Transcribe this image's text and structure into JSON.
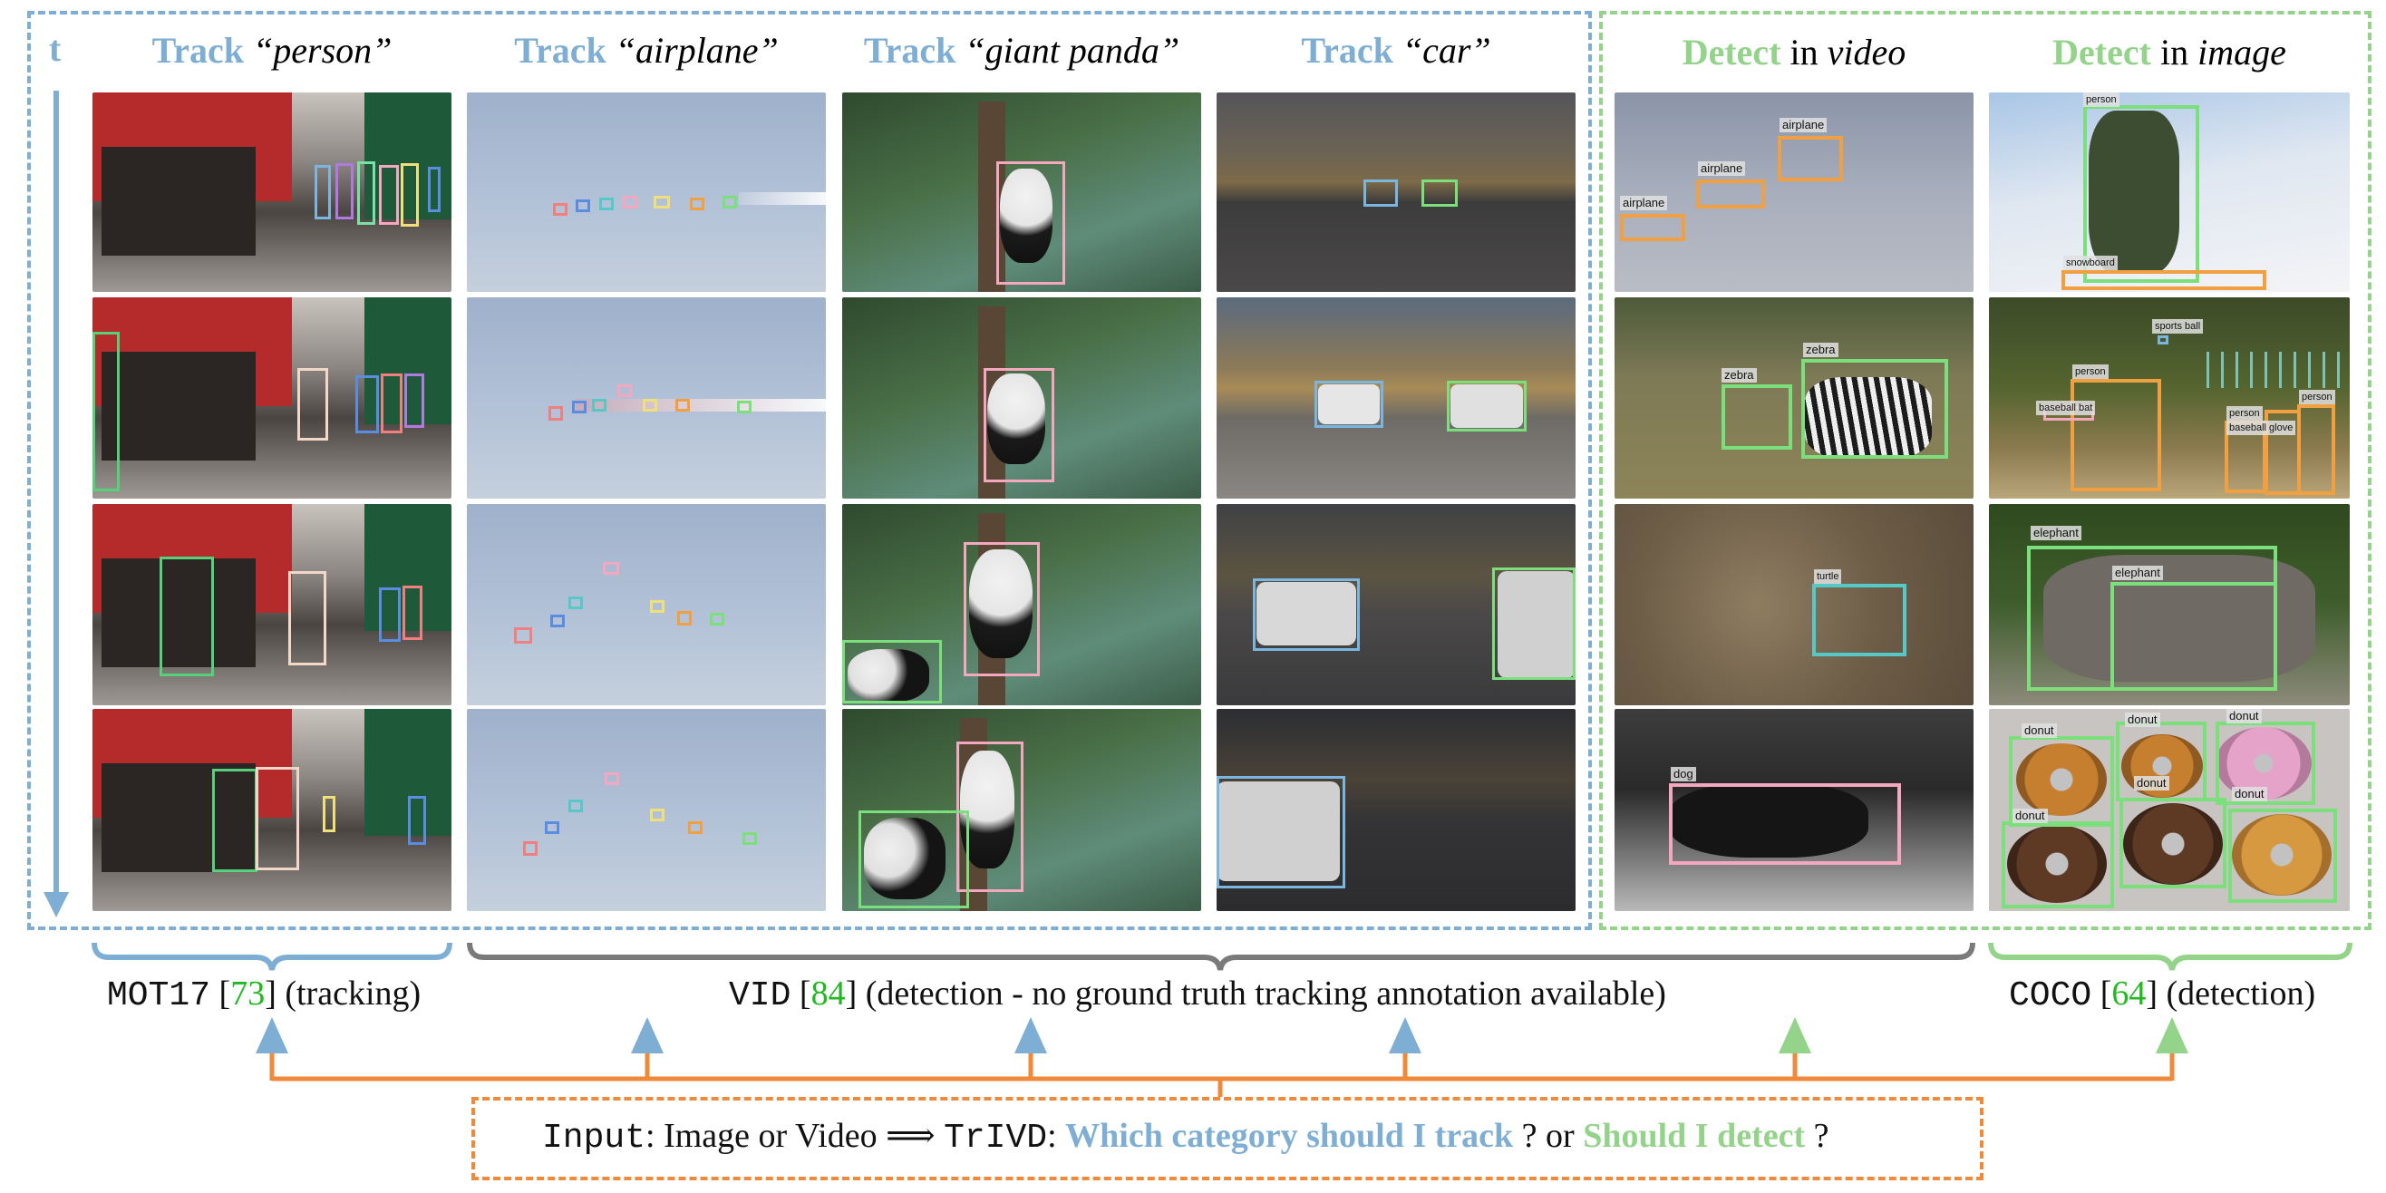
{
  "figure": {
    "time_label": "t",
    "track_columns": [
      {
        "word": "Track",
        "category": "“person”"
      },
      {
        "word": "Track",
        "category": "“airplane”"
      },
      {
        "word": "Track",
        "category": "“giant panda”"
      },
      {
        "word": "Track",
        "category": "“car”"
      }
    ],
    "detect_columns": [
      {
        "word": "Detect",
        "joiner": "in",
        "source": "video"
      },
      {
        "word": "Detect",
        "joiner": "in",
        "source": "image"
      }
    ],
    "detection_labels": {
      "airplane": "airplane",
      "person": "person",
      "snowboard": "snowboard",
      "zebra": "zebra",
      "sports_ball": "sports ball",
      "baseball_bat": "baseball bat",
      "baseball_glove": "baseball glove",
      "turtle": "turtle",
      "elephant": "elephant",
      "dog": "dog",
      "donut": "donut"
    },
    "datasets": [
      {
        "name": "MOT17",
        "open": " [",
        "cite": "73",
        "close": "] (tracking)"
      },
      {
        "name": "VID",
        "open": " [",
        "cite": "84",
        "close": "] (detection - no ground truth tracking annotation available)"
      },
      {
        "name": "COCO",
        "open": " [",
        "cite": "64",
        "close": "] (detection)"
      }
    ],
    "input_box": {
      "input_word": "Input",
      "input_rest": ": Image or Video ",
      "arrow": "⟹",
      "model": "TrIVD",
      "colon": ":",
      "question_track": "Which category should I track",
      "middle": " ? or ",
      "question_detect": "Should I detect",
      "end": " ?"
    },
    "colors": {
      "track_blue": "#7eaed4",
      "detect_green": "#93d38a",
      "brace_gray": "#7a7a7a",
      "input_orange": "#ef8a3a",
      "cite_green": "#22b822"
    }
  }
}
